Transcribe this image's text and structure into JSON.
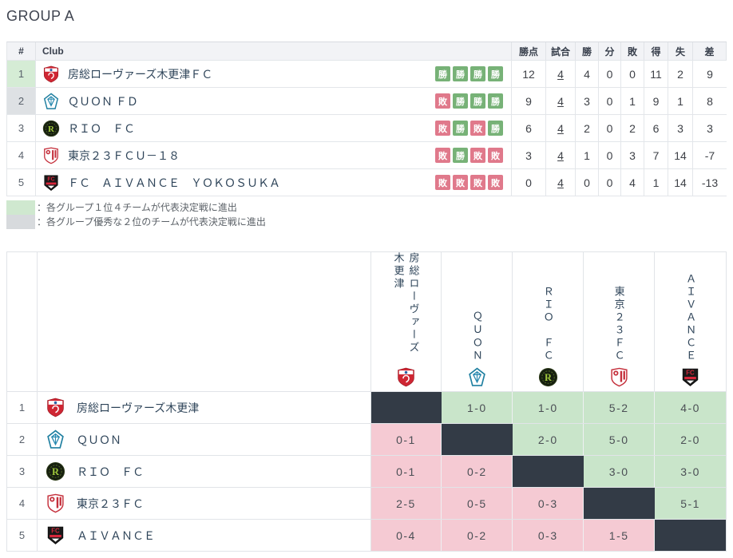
{
  "title": "GROUP A",
  "colors": {
    "badge_win": "#77b277",
    "badge_loss": "#e0798b",
    "rank_first_bg": "#d5ecd5",
    "rank_second_bg": "#dee1e4",
    "cell_win_bg": "#c9e5ca",
    "cell_loss_bg": "#f5cad3",
    "cell_self_bg": "#333b46",
    "legend_first": "#cfe8cf",
    "legend_second": "#d7dadd"
  },
  "form_labels": {
    "win": "勝",
    "loss": "敗"
  },
  "standings": {
    "headers": {
      "rank": "#",
      "club": "Club",
      "points": "勝点",
      "played": "試合",
      "won": "勝",
      "drawn": "分",
      "lost": "敗",
      "goals_for": "得",
      "goals_against": "失",
      "goal_diff": "差"
    },
    "rows": [
      {
        "rank": "1",
        "club": "房総ローヴァーズ木更津ＦＣ",
        "logo": "boso",
        "highlight": "first",
        "form": [
          "win",
          "win",
          "win",
          "win"
        ],
        "points": "12",
        "played": "4",
        "won": "4",
        "drawn": "0",
        "lost": "0",
        "goals_for": "11",
        "goals_against": "2",
        "goal_diff": "9"
      },
      {
        "rank": "2",
        "club": "ＱＵＯＮ ＦＤ",
        "logo": "quon",
        "highlight": "second",
        "form": [
          "loss",
          "win",
          "win",
          "win"
        ],
        "points": "9",
        "played": "4",
        "won": "3",
        "drawn": "0",
        "lost": "1",
        "goals_for": "9",
        "goals_against": "1",
        "goal_diff": "8"
      },
      {
        "rank": "3",
        "club": "ＲＩＯ　ＦＣ",
        "logo": "rio",
        "highlight": null,
        "form": [
          "loss",
          "win",
          "loss",
          "win"
        ],
        "points": "6",
        "played": "4",
        "won": "2",
        "drawn": "0",
        "lost": "2",
        "goals_for": "6",
        "goals_against": "3",
        "goal_diff": "3"
      },
      {
        "rank": "4",
        "club": "東京２３ＦＣＵ－１８",
        "logo": "tokyo23",
        "highlight": null,
        "form": [
          "loss",
          "win",
          "loss",
          "loss"
        ],
        "points": "3",
        "played": "4",
        "won": "1",
        "drawn": "0",
        "lost": "3",
        "goals_for": "7",
        "goals_against": "14",
        "goal_diff": "-7"
      },
      {
        "rank": "5",
        "club": "ＦＣ　ＡＩＶＡＮＣＥ　ＹＯＫＯＳＵＫＡ",
        "logo": "aivance",
        "highlight": null,
        "form": [
          "loss",
          "loss",
          "loss",
          "loss"
        ],
        "points": "0",
        "played": "4",
        "won": "0",
        "drawn": "0",
        "lost": "4",
        "goals_for": "1",
        "goals_against": "14",
        "goal_diff": "-13"
      }
    ]
  },
  "legend": {
    "items": [
      {
        "color_key": "legend_first",
        "text": "：各グループ１位４チームが代表決定戦に進出"
      },
      {
        "color_key": "legend_second",
        "text": "：各グループ優秀な２位のチームが代表決定戦に進出"
      }
    ]
  },
  "crosstable": {
    "columns": [
      {
        "label": "房総ローヴァーズ木更津",
        "logo": "boso"
      },
      {
        "label": "ＱＵＯＮ",
        "logo": "quon"
      },
      {
        "label": "ＲＩＯ　ＦＣ",
        "logo": "rio"
      },
      {
        "label": "東京２３ＦＣ",
        "logo": "tokyo23"
      },
      {
        "label": "ＡＩＶＡＮＣＥ",
        "logo": "aivance"
      }
    ],
    "rows": [
      {
        "rank": "1",
        "club": "房総ローヴァーズ木更津",
        "logo": "boso",
        "cells": [
          {
            "self": true
          },
          {
            "score": "1-0",
            "result": "win"
          },
          {
            "score": "1-0",
            "result": "win"
          },
          {
            "score": "5-2",
            "result": "win"
          },
          {
            "score": "4-0",
            "result": "win"
          }
        ]
      },
      {
        "rank": "2",
        "club": "ＱＵＯＮ",
        "logo": "quon",
        "cells": [
          {
            "score": "0-1",
            "result": "loss"
          },
          {
            "self": true
          },
          {
            "score": "2-0",
            "result": "win"
          },
          {
            "score": "5-0",
            "result": "win"
          },
          {
            "score": "2-0",
            "result": "win"
          }
        ]
      },
      {
        "rank": "3",
        "club": "ＲＩＯ　ＦＣ",
        "logo": "rio",
        "cells": [
          {
            "score": "0-1",
            "result": "loss"
          },
          {
            "score": "0-2",
            "result": "loss"
          },
          {
            "self": true
          },
          {
            "score": "3-0",
            "result": "win"
          },
          {
            "score": "3-0",
            "result": "win"
          }
        ]
      },
      {
        "rank": "4",
        "club": "東京２３ＦＣ",
        "logo": "tokyo23",
        "cells": [
          {
            "score": "2-5",
            "result": "loss"
          },
          {
            "score": "0-5",
            "result": "loss"
          },
          {
            "score": "0-3",
            "result": "loss"
          },
          {
            "self": true
          },
          {
            "score": "5-1",
            "result": "win"
          }
        ]
      },
      {
        "rank": "5",
        "club": "ＡＩＶＡＮＣＥ",
        "logo": "aivance",
        "cells": [
          {
            "score": "0-4",
            "result": "loss"
          },
          {
            "score": "0-2",
            "result": "loss"
          },
          {
            "score": "0-3",
            "result": "loss"
          },
          {
            "score": "1-5",
            "result": "loss"
          },
          {
            "self": true
          }
        ]
      }
    ]
  }
}
